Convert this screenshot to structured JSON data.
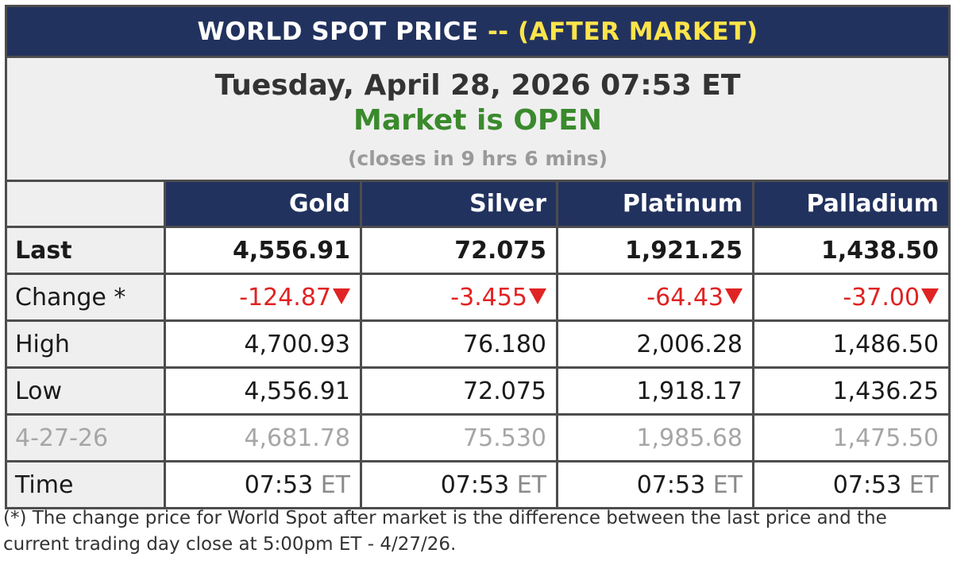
{
  "title": {
    "main": "WORLD SPOT PRICE",
    "sep": "--",
    "suffix": "(AFTER MARKET)"
  },
  "info": {
    "datetime": "Tuesday, April 28, 2026 07:53 ET",
    "status": "Market is OPEN",
    "closes": "(closes in 9 hrs 6 mins)"
  },
  "colors": {
    "header_bg": "#22325e",
    "accent_yellow": "#fde44b",
    "open_green": "#3a8a2c",
    "down_red": "#e02323"
  },
  "columns": [
    "Gold",
    "Silver",
    "Platinum",
    "Palladium"
  ],
  "rows": {
    "last": {
      "label": "Last",
      "values": [
        "4,556.91",
        "72.075",
        "1,921.25",
        "1,438.50"
      ]
    },
    "change": {
      "label": "Change *",
      "values": [
        "-124.87",
        "-3.455",
        "-64.43",
        "-37.00"
      ],
      "direction": "down-triangle-icon"
    },
    "high": {
      "label": "High",
      "values": [
        "4,700.93",
        "76.180",
        "2,006.28",
        "1,486.50"
      ]
    },
    "low": {
      "label": "Low",
      "values": [
        "4,556.91",
        "72.075",
        "1,918.17",
        "1,436.25"
      ]
    },
    "prev": {
      "label": "4-27-26",
      "values": [
        "4,681.78",
        "75.530",
        "1,985.68",
        "1,475.50"
      ]
    },
    "time": {
      "label": "Time",
      "values": [
        "07:53",
        "07:53",
        "07:53",
        "07:53"
      ],
      "unit": "ET"
    }
  },
  "footnote": "(*) The change price for World Spot after market is the difference between the last price and the current trading day close at 5:00pm ET - 4/27/26."
}
